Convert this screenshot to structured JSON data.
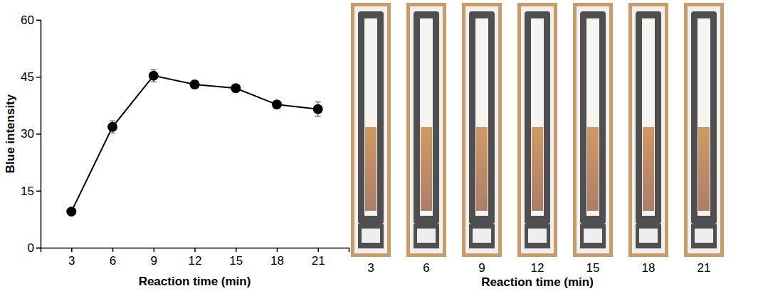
{
  "chart_data": {
    "type": "line",
    "categories": [
      "3",
      "6",
      "9",
      "12",
      "15",
      "18",
      "21"
    ],
    "values": [
      9.5,
      31.8,
      45.3,
      43.0,
      42.0,
      37.7,
      36.5
    ],
    "errors": [
      0.4,
      1.6,
      1.6,
      1.0,
      0.7,
      0.7,
      1.9
    ],
    "ylim": [
      0,
      60
    ],
    "yticks": [
      0,
      15,
      30,
      45,
      60
    ],
    "x_label": "Reaction time (min)",
    "y_label": "Blue intensity",
    "color": "#000000",
    "marker": "circle",
    "line_style": "solid"
  },
  "photo_panel": {
    "labels": [
      "3",
      "6",
      "9",
      "12",
      "15",
      "18",
      "21"
    ],
    "x_label": "Reaction time (min)"
  }
}
